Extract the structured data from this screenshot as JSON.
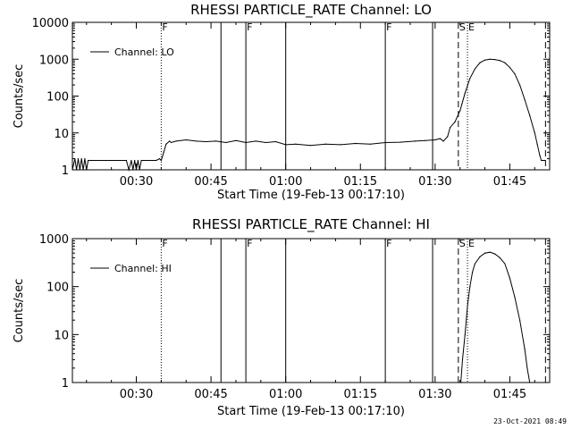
{
  "timestamp": "23-Oct-2021 08:49",
  "chart_data": [
    {
      "type": "line",
      "title": "RHESSI PARTICLE_RATE Channel: LO",
      "xlabel": "Start Time (19-Feb-13 00:17:10)",
      "ylabel": "Counts/sec",
      "yscale": "log",
      "ylim": [
        1,
        10000
      ],
      "xlim": [
        "00:17:10",
        "01:53:00"
      ],
      "x_ticks": [
        "00:30",
        "00:45",
        "01:00",
        "01:15",
        "01:30",
        "01:45"
      ],
      "y_ticks": [
        "1",
        "10",
        "100",
        "1000",
        "10000"
      ],
      "legend": {
        "text": "Channel: LO",
        "position": "top-left"
      },
      "markers": [
        {
          "time": "00:35:00",
          "label": "F",
          "style": "dotted"
        },
        {
          "time": "00:47:00",
          "label": "",
          "style": "solid"
        },
        {
          "time": "00:52:00",
          "label": "F",
          "style": "solid"
        },
        {
          "time": "01:00:00",
          "label": "",
          "style": "solid"
        },
        {
          "time": "01:20:00",
          "label": "F",
          "style": "solid"
        },
        {
          "time": "01:29:30",
          "label": "",
          "style": "solid"
        },
        {
          "time": "01:34:40",
          "label": "S",
          "style": "dashed"
        },
        {
          "time": "01:36:30",
          "label": "E",
          "style": "dotted"
        },
        {
          "time": "01:52:10",
          "label": "",
          "style": "dashed"
        },
        {
          "time": "01:53:00",
          "label": "",
          "style": "dotted"
        }
      ],
      "series": [
        {
          "x": [
            "00:17:10",
            "00:17:40",
            "00:18:00",
            "00:18:20",
            "00:18:40",
            "00:19:00",
            "00:19:20",
            "00:19:40",
            "00:20:00",
            "00:20:20",
            "00:20:40",
            "00:21:00",
            "00:22:00",
            "00:24:00",
            "00:26:00",
            "00:28:00",
            "00:28:30",
            "00:29:00",
            "00:29:20",
            "00:29:40",
            "00:30:00",
            "00:30:20",
            "00:30:40",
            "00:31:00",
            "00:32:00",
            "00:34:00",
            "00:34:40",
            "00:35:00",
            "00:35:30",
            "00:36:00",
            "00:36:40",
            "00:37:00",
            "00:38:00",
            "00:40:00",
            "00:42:00",
            "00:44:00",
            "00:46:00",
            "00:48:00",
            "00:50:00",
            "00:52:00",
            "00:54:00",
            "00:56:00",
            "00:58:00",
            "01:00:00",
            "01:02:00",
            "01:05:00",
            "01:08:00",
            "01:11:00",
            "01:14:00",
            "01:17:00",
            "01:20:00",
            "01:23:00",
            "01:26:00",
            "01:28:00",
            "01:30:00",
            "01:31:00",
            "01:31:40",
            "01:32:30",
            "01:33:00",
            "01:34:00",
            "01:35:00",
            "01:36:00",
            "01:37:00",
            "01:38:00",
            "01:39:00",
            "01:40:00",
            "01:41:00",
            "01:42:00",
            "01:43:00",
            "01:44:00",
            "01:45:00",
            "01:46:00",
            "01:47:00",
            "01:48:00",
            "01:49:00",
            "01:50:00",
            "01:50:30",
            "01:51:00",
            "01:51:20",
            "01:51:40",
            "01:52:00"
          ],
          "values": [
            1,
            2,
            1,
            2,
            1,
            2,
            1,
            2,
            1,
            1.8,
            1.8,
            1.8,
            1.8,
            1.8,
            1.8,
            1.8,
            1,
            1.8,
            1,
            1.8,
            1,
            1.8,
            1,
            1.8,
            1.8,
            1.8,
            2,
            1.8,
            3,
            5,
            6,
            5.5,
            6,
            6.5,
            6,
            5.8,
            6,
            5.5,
            6.2,
            5.5,
            6,
            5.5,
            5.8,
            4.8,
            5,
            4.6,
            5,
            4.8,
            5.2,
            5,
            5.5,
            5.6,
            6,
            6.2,
            6.5,
            7,
            6,
            8,
            14,
            20,
            40,
            120,
            300,
            550,
            800,
            950,
            1000,
            980,
            920,
            800,
            600,
            400,
            200,
            80,
            30,
            10,
            5,
            2.5,
            1.8,
            1.8,
            1.8
          ]
        }
      ]
    },
    {
      "type": "line",
      "title": "RHESSI PARTICLE_RATE Channel: HI",
      "xlabel": "Start Time (19-Feb-13 00:17:10)",
      "ylabel": "Counts/sec",
      "yscale": "log",
      "ylim": [
        1,
        1000
      ],
      "xlim": [
        "00:17:10",
        "01:53:00"
      ],
      "x_ticks": [
        "00:30",
        "00:45",
        "01:00",
        "01:15",
        "01:30",
        "01:45"
      ],
      "y_ticks": [
        "1",
        "10",
        "100",
        "1000"
      ],
      "legend": {
        "text": "Channel: HI",
        "position": "top-left"
      },
      "markers": [
        {
          "time": "00:35:00",
          "label": "F",
          "style": "dotted"
        },
        {
          "time": "00:47:00",
          "label": "",
          "style": "solid"
        },
        {
          "time": "00:52:00",
          "label": "F",
          "style": "solid"
        },
        {
          "time": "01:00:00",
          "label": "",
          "style": "solid"
        },
        {
          "time": "01:20:00",
          "label": "F",
          "style": "solid"
        },
        {
          "time": "01:29:30",
          "label": "",
          "style": "solid"
        },
        {
          "time": "01:34:40",
          "label": "S",
          "style": "dashed"
        },
        {
          "time": "01:36:30",
          "label": "E",
          "style": "dotted"
        },
        {
          "time": "01:52:10",
          "label": "",
          "style": "dashed"
        },
        {
          "time": "01:53:00",
          "label": "",
          "style": "dotted"
        }
      ],
      "series": [
        {
          "x": [
            "01:35:10",
            "01:35:30",
            "01:36:00",
            "01:36:30",
            "01:37:00",
            "01:37:30",
            "01:38:00",
            "01:39:00",
            "01:40:00",
            "01:41:00",
            "01:42:00",
            "01:43:00",
            "01:44:00",
            "01:45:00",
            "01:46:00",
            "01:47:00",
            "01:48:00",
            "01:48:30",
            "01:49:00"
          ],
          "values": [
            1,
            3,
            10,
            40,
            100,
            200,
            300,
            420,
            500,
            520,
            480,
            400,
            300,
            150,
            60,
            20,
            5,
            2,
            1
          ]
        }
      ]
    }
  ]
}
